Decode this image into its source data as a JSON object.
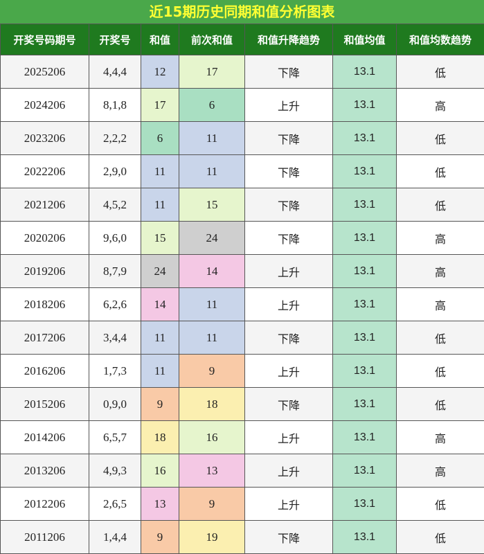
{
  "title": "近15期历史同期和值分析图表",
  "headers": [
    "开奖号码期号",
    "开奖号",
    "和值",
    "前次和值",
    "和值升降趋势",
    "和值均值",
    "和值均数趋势"
  ],
  "colors": {
    "title_bg": "#4aa84a",
    "title_text": "#ffff33",
    "header_bg": "#1f7a1f",
    "avg_bg": "#b7e4cc",
    "value_colors": {
      "6": "#a9dfc2",
      "9": "#f9caa7",
      "11": "#c9d5ea",
      "12": "#c9d5ea",
      "13": "#f4c8e4",
      "14": "#f4c8e4",
      "15": "#e6f5cd",
      "16": "#e6f5cd",
      "17": "#e6f5cd",
      "18": "#fbefb0",
      "19": "#fbefb0",
      "24": "#cfcfcf"
    }
  },
  "rows": [
    {
      "period": "2025206",
      "nums": "4,4,4",
      "sum": "12",
      "prev": "17",
      "trend": "下降",
      "avg": "13.1",
      "avg_trend": "低"
    },
    {
      "period": "2024206",
      "nums": "8,1,8",
      "sum": "17",
      "prev": "6",
      "trend": "上升",
      "avg": "13.1",
      "avg_trend": "高"
    },
    {
      "period": "2023206",
      "nums": "2,2,2",
      "sum": "6",
      "prev": "11",
      "trend": "下降",
      "avg": "13.1",
      "avg_trend": "低"
    },
    {
      "period": "2022206",
      "nums": "2,9,0",
      "sum": "11",
      "prev": "11",
      "trend": "下降",
      "avg": "13.1",
      "avg_trend": "低"
    },
    {
      "period": "2021206",
      "nums": "4,5,2",
      "sum": "11",
      "prev": "15",
      "trend": "下降",
      "avg": "13.1",
      "avg_trend": "低"
    },
    {
      "period": "2020206",
      "nums": "9,6,0",
      "sum": "15",
      "prev": "24",
      "trend": "下降",
      "avg": "13.1",
      "avg_trend": "高"
    },
    {
      "period": "2019206",
      "nums": "8,7,9",
      "sum": "24",
      "prev": "14",
      "trend": "上升",
      "avg": "13.1",
      "avg_trend": "高"
    },
    {
      "period": "2018206",
      "nums": "6,2,6",
      "sum": "14",
      "prev": "11",
      "trend": "上升",
      "avg": "13.1",
      "avg_trend": "高"
    },
    {
      "period": "2017206",
      "nums": "3,4,4",
      "sum": "11",
      "prev": "11",
      "trend": "下降",
      "avg": "13.1",
      "avg_trend": "低"
    },
    {
      "period": "2016206",
      "nums": "1,7,3",
      "sum": "11",
      "prev": "9",
      "trend": "上升",
      "avg": "13.1",
      "avg_trend": "低"
    },
    {
      "period": "2015206",
      "nums": "0,9,0",
      "sum": "9",
      "prev": "18",
      "trend": "下降",
      "avg": "13.1",
      "avg_trend": "低"
    },
    {
      "period": "2014206",
      "nums": "6,5,7",
      "sum": "18",
      "prev": "16",
      "trend": "上升",
      "avg": "13.1",
      "avg_trend": "高"
    },
    {
      "period": "2013206",
      "nums": "4,9,3",
      "sum": "16",
      "prev": "13",
      "trend": "上升",
      "avg": "13.1",
      "avg_trend": "高"
    },
    {
      "period": "2012206",
      "nums": "2,6,5",
      "sum": "13",
      "prev": "9",
      "trend": "上升",
      "avg": "13.1",
      "avg_trend": "低"
    },
    {
      "period": "2011206",
      "nums": "1,4,4",
      "sum": "9",
      "prev": "19",
      "trend": "下降",
      "avg": "13.1",
      "avg_trend": "低"
    }
  ]
}
